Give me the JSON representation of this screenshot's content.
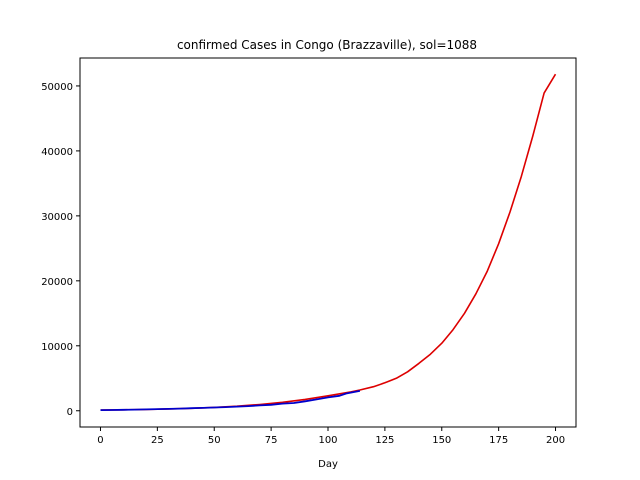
{
  "chart_data": {
    "type": "line",
    "title": "confirmed Cases in Congo (Brazzaville), sol=1088",
    "xlabel": "Day",
    "ylabel": "",
    "xlim": [
      -9,
      209
    ],
    "ylim": [
      -2500,
      54300
    ],
    "xticks": [
      0,
      25,
      50,
      75,
      100,
      125,
      150,
      175,
      200
    ],
    "yticks": [
      0,
      10000,
      20000,
      30000,
      40000,
      50000
    ],
    "grid": false,
    "legend": "none",
    "series": [
      {
        "color": "#dd0000",
        "x": [
          0,
          10,
          20,
          30,
          40,
          50,
          60,
          70,
          80,
          90,
          100,
          110,
          114,
          120,
          125,
          130,
          135,
          140,
          145,
          150,
          155,
          160,
          165,
          170,
          175,
          180,
          185,
          190,
          195,
          200
        ],
        "values": [
          100,
          140,
          200,
          280,
          380,
          520,
          700,
          960,
          1300,
          1750,
          2300,
          2900,
          3200,
          3700,
          4300,
          5000,
          6000,
          7300,
          8700,
          10400,
          12500,
          15000,
          18000,
          21500,
          25700,
          30600,
          36100,
          42300,
          48900,
          51800
        ]
      },
      {
        "color": "#0000cc",
        "x": [
          0,
          5,
          10,
          15,
          20,
          25,
          30,
          35,
          40,
          45,
          50,
          55,
          60,
          65,
          70,
          75,
          80,
          85,
          90,
          95,
          100,
          105,
          108,
          110,
          114
        ],
        "values": [
          100,
          120,
          150,
          180,
          210,
          250,
          290,
          340,
          390,
          440,
          500,
          560,
          640,
          720,
          820,
          920,
          1100,
          1200,
          1450,
          1750,
          2050,
          2300,
          2650,
          2800,
          3050
        ]
      }
    ]
  }
}
